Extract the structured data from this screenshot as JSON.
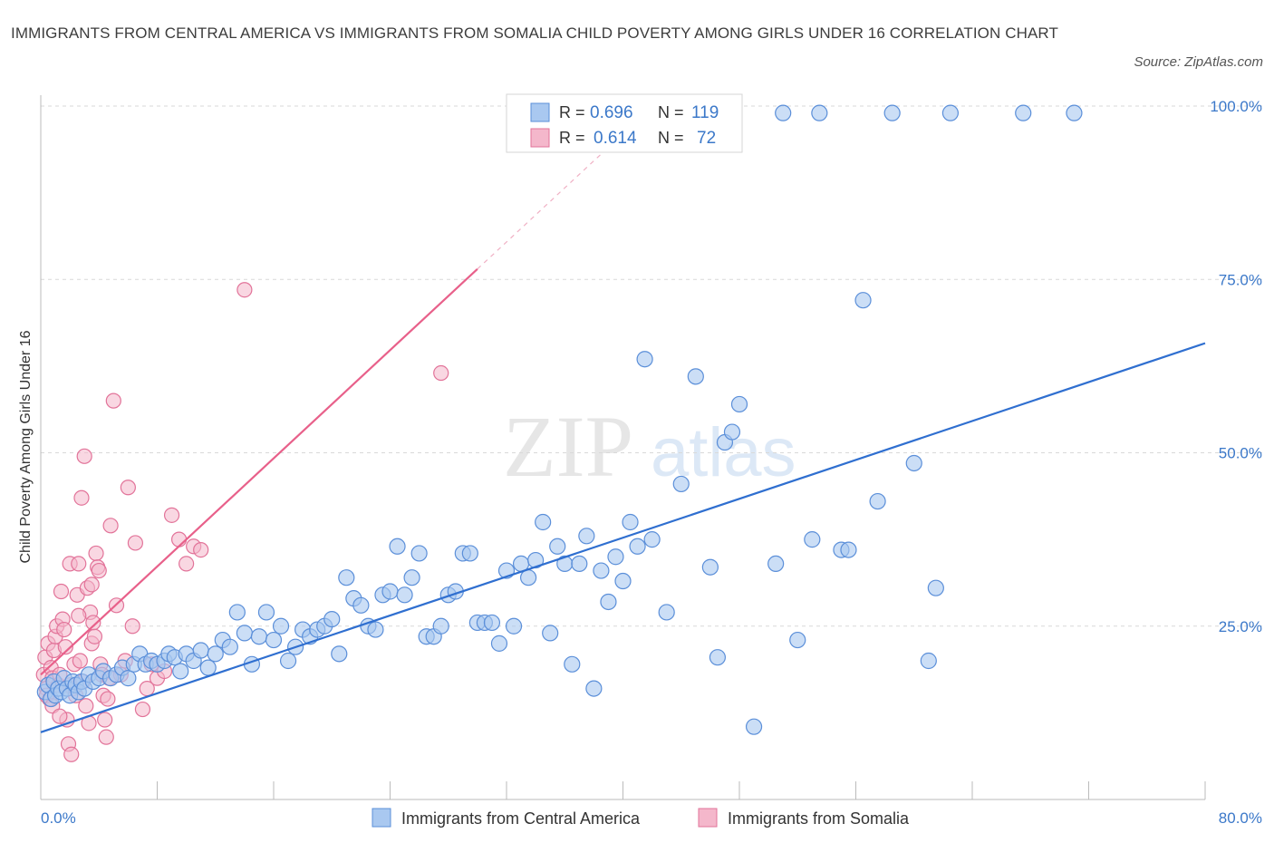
{
  "title": "IMMIGRANTS FROM CENTRAL AMERICA VS IMMIGRANTS FROM SOMALIA CHILD POVERTY AMONG GIRLS UNDER 16 CORRELATION CHART",
  "source": "Source: ZipAtlas.com",
  "watermark": {
    "zip": "ZIP",
    "atlas": "atlas"
  },
  "legend_box": {
    "rows": [
      {
        "r_label": "R = ",
        "r_value": "0.696",
        "n_label": "N = ",
        "n_value": "119"
      },
      {
        "r_label": "R = ",
        "r_value": "0.614",
        "n_label": "N = ",
        "n_value": "72"
      }
    ]
  },
  "colors": {
    "blue_fill": "#a9c8f0",
    "blue_stroke": "#5b8fd9",
    "blue_line": "#2f6fd0",
    "pink_fill": "#f4b7cb",
    "pink_stroke": "#e27399",
    "pink_line": "#e8608a",
    "value_text": "#3b78c9",
    "grid": "#d9d9d9"
  },
  "chart_data": {
    "type": "scatter",
    "title": "IMMIGRANTS FROM CENTRAL AMERICA VS IMMIGRANTS FROM SOMALIA CHILD POVERTY AMONG GIRLS UNDER 16 CORRELATION CHART",
    "xlabel": "",
    "ylabel": "Child Poverty Among Girls Under 16",
    "xlim": [
      0,
      80
    ],
    "ylim": [
      0,
      100
    ],
    "x_tick_labels": [
      "0.0%",
      "80.0%"
    ],
    "y_tick_labels": [
      "25.0%",
      "50.0%",
      "75.0%",
      "100.0%"
    ],
    "y_ticks": [
      25,
      50,
      75,
      100
    ],
    "grid": true,
    "legend_position": "bottom-center",
    "series": [
      {
        "name": "Immigrants from Central America",
        "color": "#a9c8f0",
        "r": 0.696,
        "n": 119,
        "trend": {
          "x": [
            0,
            80
          ],
          "y": [
            9.7,
            65.8
          ]
        },
        "points": [
          [
            0.3,
            15.5
          ],
          [
            0.5,
            16.5
          ],
          [
            0.7,
            14.5
          ],
          [
            0.9,
            17.0
          ],
          [
            1.0,
            15.0
          ],
          [
            1.2,
            16.0
          ],
          [
            1.4,
            15.5
          ],
          [
            1.6,
            17.5
          ],
          [
            1.8,
            16.0
          ],
          [
            2.0,
            15.0
          ],
          [
            2.2,
            17.0
          ],
          [
            2.4,
            16.5
          ],
          [
            2.6,
            15.5
          ],
          [
            2.8,
            17.0
          ],
          [
            3.0,
            16.0
          ],
          [
            3.3,
            18.0
          ],
          [
            3.6,
            17.0
          ],
          [
            4.0,
            17.5
          ],
          [
            4.3,
            18.5
          ],
          [
            4.8,
            17.5
          ],
          [
            5.2,
            18.0
          ],
          [
            5.6,
            19.0
          ],
          [
            6.0,
            17.5
          ],
          [
            6.4,
            19.5
          ],
          [
            6.8,
            21.0
          ],
          [
            7.2,
            19.5
          ],
          [
            7.6,
            20.0
          ],
          [
            8.0,
            19.5
          ],
          [
            8.5,
            20.0
          ],
          [
            8.8,
            21.0
          ],
          [
            9.2,
            20.5
          ],
          [
            9.6,
            18.5
          ],
          [
            10.0,
            21.0
          ],
          [
            10.5,
            20.0
          ],
          [
            11.0,
            21.5
          ],
          [
            11.5,
            19.0
          ],
          [
            12.0,
            21.0
          ],
          [
            12.5,
            23.0
          ],
          [
            13.0,
            22.0
          ],
          [
            13.5,
            27.0
          ],
          [
            14.0,
            24.0
          ],
          [
            14.5,
            19.5
          ],
          [
            15.0,
            23.5
          ],
          [
            15.5,
            27.0
          ],
          [
            16.0,
            23.0
          ],
          [
            16.5,
            25.0
          ],
          [
            17.0,
            20.0
          ],
          [
            17.5,
            22.0
          ],
          [
            18.0,
            24.5
          ],
          [
            18.5,
            23.5
          ],
          [
            19.0,
            24.5
          ],
          [
            19.5,
            25.0
          ],
          [
            20.0,
            26.0
          ],
          [
            20.5,
            21.0
          ],
          [
            21.0,
            32.0
          ],
          [
            21.5,
            29.0
          ],
          [
            22.0,
            28.0
          ],
          [
            22.5,
            25.0
          ],
          [
            23.0,
            24.5
          ],
          [
            23.5,
            29.5
          ],
          [
            24.0,
            30.0
          ],
          [
            24.5,
            36.5
          ],
          [
            25.0,
            29.5
          ],
          [
            25.5,
            32.0
          ],
          [
            26.0,
            35.5
          ],
          [
            26.5,
            23.5
          ],
          [
            27.0,
            23.5
          ],
          [
            27.5,
            25.0
          ],
          [
            28.0,
            29.5
          ],
          [
            28.5,
            30.0
          ],
          [
            29.0,
            35.5
          ],
          [
            29.5,
            35.5
          ],
          [
            30.0,
            25.5
          ],
          [
            30.5,
            25.5
          ],
          [
            31.0,
            25.5
          ],
          [
            31.5,
            22.5
          ],
          [
            32.0,
            33.0
          ],
          [
            32.5,
            25.0
          ],
          [
            33.0,
            34.0
          ],
          [
            33.5,
            32.0
          ],
          [
            34.0,
            34.5
          ],
          [
            34.5,
            40.0
          ],
          [
            35.0,
            24.0
          ],
          [
            35.5,
            36.5
          ],
          [
            36.0,
            34.0
          ],
          [
            36.5,
            19.5
          ],
          [
            37.0,
            34.0
          ],
          [
            37.5,
            38.0
          ],
          [
            38.0,
            16.0
          ],
          [
            38.5,
            33.0
          ],
          [
            39.0,
            28.5
          ],
          [
            39.5,
            35.0
          ],
          [
            40.0,
            31.5
          ],
          [
            40.5,
            40.0
          ],
          [
            41.0,
            36.5
          ],
          [
            41.5,
            63.5
          ],
          [
            42.0,
            37.5
          ],
          [
            43.0,
            27.0
          ],
          [
            44.0,
            45.5
          ],
          [
            45.0,
            61.0
          ],
          [
            46.0,
            33.5
          ],
          [
            46.5,
            20.5
          ],
          [
            47.0,
            51.5
          ],
          [
            47.5,
            53.0
          ],
          [
            48.0,
            57.0
          ],
          [
            49.0,
            10.5
          ],
          [
            50.5,
            34.0
          ],
          [
            51.0,
            99.0
          ],
          [
            52.0,
            23.0
          ],
          [
            53.5,
            99.0
          ],
          [
            53.0,
            37.5
          ],
          [
            55.0,
            36.0
          ],
          [
            55.5,
            36.0
          ],
          [
            56.5,
            72.0
          ],
          [
            57.5,
            43.0
          ],
          [
            58.5,
            99.0
          ],
          [
            60.0,
            48.5
          ],
          [
            61.0,
            20.0
          ],
          [
            61.5,
            30.5
          ],
          [
            62.5,
            99.0
          ],
          [
            67.5,
            99.0
          ],
          [
            71.0,
            99.0
          ]
        ]
      },
      {
        "name": "Immigrants from Somalia",
        "color": "#f4b7cb",
        "r": 0.614,
        "n": 72,
        "trend": {
          "x": [
            0,
            30
          ],
          "y": [
            18.0,
            76.5
          ]
        },
        "points": [
          [
            0.2,
            18.0
          ],
          [
            0.3,
            20.5
          ],
          [
            0.4,
            16.0
          ],
          [
            0.5,
            22.5
          ],
          [
            0.6,
            14.5
          ],
          [
            0.7,
            19.0
          ],
          [
            0.8,
            17.5
          ],
          [
            0.9,
            21.5
          ],
          [
            1.0,
            23.5
          ],
          [
            1.1,
            25.0
          ],
          [
            1.2,
            16.5
          ],
          [
            1.3,
            18.0
          ],
          [
            1.4,
            30.0
          ],
          [
            1.5,
            26.0
          ],
          [
            1.6,
            24.5
          ],
          [
            1.7,
            22.0
          ],
          [
            1.8,
            11.5
          ],
          [
            1.9,
            8.0
          ],
          [
            2.0,
            34.0
          ],
          [
            2.1,
            6.5
          ],
          [
            2.2,
            16.0
          ],
          [
            2.3,
            19.5
          ],
          [
            2.4,
            15.0
          ],
          [
            2.5,
            29.5
          ],
          [
            2.6,
            34.0
          ],
          [
            2.7,
            20.0
          ],
          [
            2.8,
            43.5
          ],
          [
            2.9,
            17.0
          ],
          [
            3.0,
            49.5
          ],
          [
            3.1,
            13.5
          ],
          [
            3.2,
            30.5
          ],
          [
            3.3,
            11.0
          ],
          [
            3.4,
            27.0
          ],
          [
            3.5,
            22.5
          ],
          [
            3.6,
            25.5
          ],
          [
            3.7,
            23.5
          ],
          [
            3.8,
            35.5
          ],
          [
            3.9,
            33.5
          ],
          [
            4.0,
            33.0
          ],
          [
            4.1,
            19.5
          ],
          [
            4.2,
            18.0
          ],
          [
            4.3,
            15.0
          ],
          [
            4.4,
            11.5
          ],
          [
            4.5,
            9.0
          ],
          [
            4.6,
            14.5
          ],
          [
            4.7,
            17.5
          ],
          [
            4.8,
            39.5
          ],
          [
            5.0,
            57.5
          ],
          [
            5.2,
            28.0
          ],
          [
            5.5,
            18.0
          ],
          [
            5.8,
            20.0
          ],
          [
            6.0,
            45.0
          ],
          [
            6.3,
            25.0
          ],
          [
            6.5,
            37.0
          ],
          [
            7.0,
            13.0
          ],
          [
            7.3,
            16.0
          ],
          [
            7.6,
            19.5
          ],
          [
            8.0,
            17.5
          ],
          [
            8.5,
            18.5
          ],
          [
            9.0,
            41.0
          ],
          [
            9.5,
            37.5
          ],
          [
            10.0,
            34.0
          ],
          [
            10.5,
            36.5
          ],
          [
            11.0,
            36.0
          ],
          [
            0.4,
            15.0
          ],
          [
            0.8,
            13.5
          ],
          [
            1.3,
            12.0
          ],
          [
            2.0,
            16.5
          ],
          [
            14.0,
            73.5
          ],
          [
            27.5,
            61.5
          ],
          [
            2.6,
            26.5
          ],
          [
            3.5,
            31.0
          ]
        ]
      }
    ]
  },
  "legend": {
    "items": [
      {
        "label": "Immigrants from Central America"
      },
      {
        "label": "Immigrants from Somalia"
      }
    ]
  }
}
